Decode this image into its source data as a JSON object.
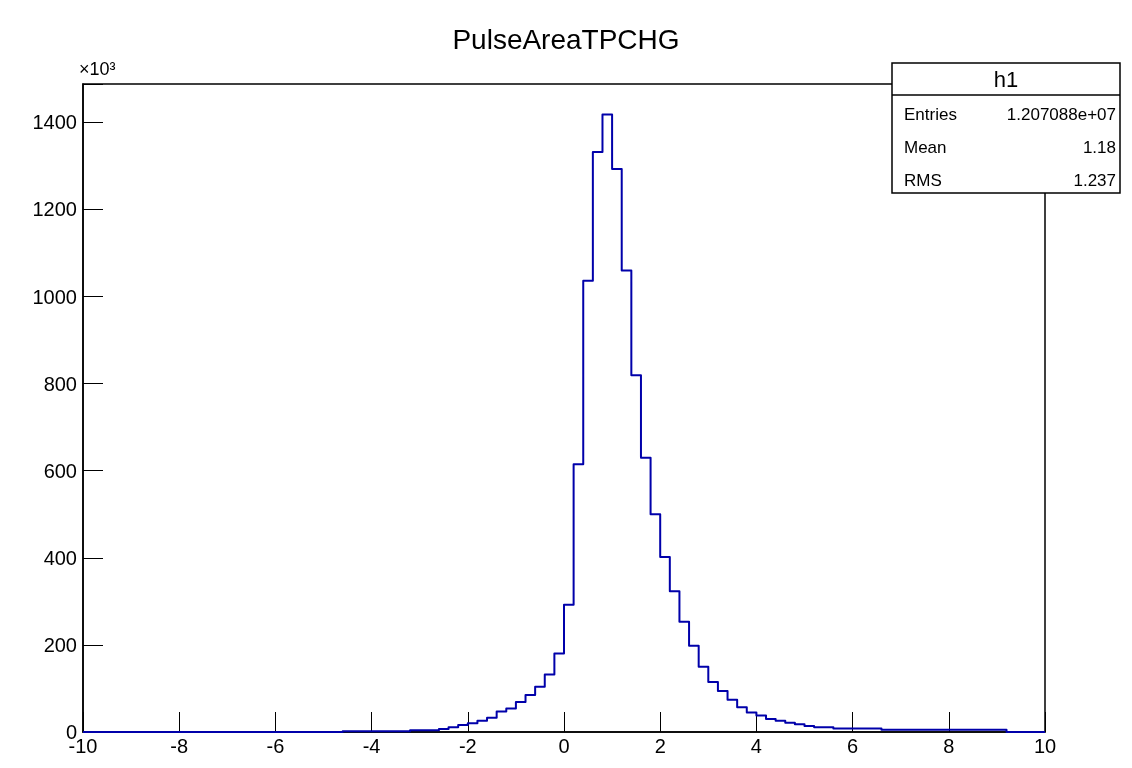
{
  "chart_data": {
    "type": "histogram",
    "title": "PulseAreaTPCHG",
    "ylabel": "×10³",
    "bins": [
      -10,
      -9.8,
      -9.6,
      -9.4,
      -9.2,
      -9,
      -8.8,
      -8.6,
      -8.4,
      -8.2,
      -8,
      -7.8,
      -7.6,
      -7.4,
      -7.2,
      -7,
      -6.8,
      -6.6,
      -6.4,
      -6.2,
      -6,
      -5.8,
      -5.6,
      -5.4,
      -5.2,
      -5,
      -4.8,
      -4.6,
      -4.4,
      -4.2,
      -4,
      -3.8,
      -3.6,
      -3.4,
      -3.2,
      -3,
      -2.8,
      -2.6,
      -2.4,
      -2.2,
      -2,
      -1.8,
      -1.6,
      -1.4,
      -1.2,
      -1,
      -0.8,
      -0.6,
      -0.4,
      -0.2,
      0,
      0.2,
      0.4,
      0.6,
      0.8,
      1,
      1.2,
      1.4,
      1.6,
      1.8,
      2,
      2.2,
      2.4,
      2.6,
      2.8,
      3,
      3.2,
      3.4,
      3.6,
      3.8,
      4,
      4.2,
      4.4,
      4.6,
      4.8,
      5,
      5.2,
      5.4,
      5.6,
      5.8,
      6,
      6.2,
      6.4,
      6.6,
      6.8,
      7,
      7.2,
      7.4,
      7.6,
      7.8,
      8,
      8.2,
      8.4,
      8.6,
      8.8,
      9,
      9.2,
      9.4,
      9.6,
      9.8,
      10
    ],
    "values": [
      0,
      0,
      0,
      0,
      0,
      0,
      0,
      0,
      0,
      0,
      0,
      0,
      0,
      0,
      0,
      0,
      0,
      0,
      0,
      0,
      0,
      0,
      0,
      0,
      0,
      0,
      0,
      2,
      2,
      2,
      2,
      2,
      2,
      2,
      4,
      4,
      4,
      7,
      11,
      16,
      20,
      26,
      33,
      47,
      54,
      69,
      85,
      104,
      132,
      180,
      292,
      615,
      1036,
      1332,
      1418,
      1293,
      1060,
      819,
      630,
      500,
      402,
      323,
      253,
      198,
      150,
      115,
      94,
      74,
      57,
      45,
      38,
      30,
      26,
      21,
      18,
      14,
      11,
      11,
      8,
      8,
      8,
      8,
      8,
      5,
      5,
      5,
      5,
      5,
      5,
      5,
      5,
      5,
      5,
      5,
      5,
      5,
      0,
      0,
      0,
      0
    ],
    "color": "#0000aa",
    "xlim": [
      -10,
      10
    ],
    "xticks": [
      -10,
      -8,
      -6,
      -4,
      -2,
      0,
      2,
      4,
      6,
      8,
      10
    ],
    "ylim": [
      0,
      1488
    ],
    "yticks": [
      0,
      200,
      400,
      600,
      800,
      1000,
      1200,
      1400
    ],
    "grid": false,
    "annotations": [
      "h1",
      "Entries",
      "1.207088e+07",
      "Mean",
      "1.18",
      "RMS",
      "1.237"
    ]
  }
}
